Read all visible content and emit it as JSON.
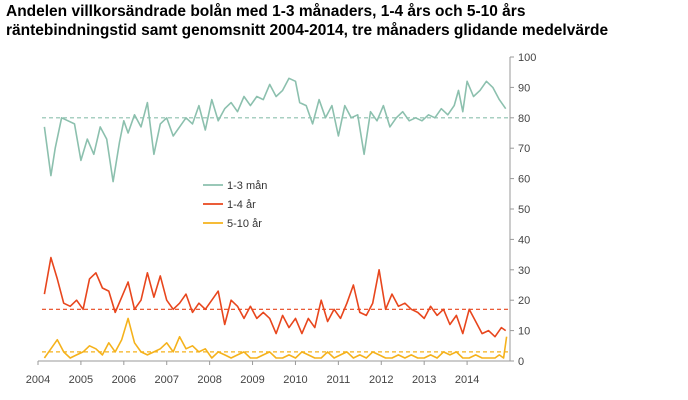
{
  "title": {
    "line1": "Andelen villkorsändrade bolån med 1-3 månaders, 1-4 års och 5-10 års",
    "line2": "räntebindningstid samt genomsnitt 2004-2014, tre månaders glidande medelvärde"
  },
  "colors": {
    "series_1_3_man": "#8cc0ae",
    "series_1_4_ar": "#e8461d",
    "series_5_10_ar": "#f5b21c",
    "axis": "#999999"
  },
  "chart_data": {
    "type": "line",
    "title": "Andelen villkorsändrade bolån med 1-3 månaders, 1-4 års och 5-10 års räntebindningstid samt genomsnitt 2004-2014, tre månaders glidande medelvärde",
    "xlabel": "",
    "ylabel": "",
    "xlim": [
      2004,
      2015
    ],
    "ylim": [
      0,
      100
    ],
    "x_ticks": [
      "2004",
      "2005",
      "2006",
      "2007",
      "2008",
      "2009",
      "2010",
      "2011",
      "2012",
      "2013",
      "2014"
    ],
    "y_ticks": [
      "0",
      "10",
      "20",
      "30",
      "40",
      "50",
      "60",
      "70",
      "80",
      "90",
      "100"
    ],
    "y_axis_side": "right",
    "grid": false,
    "legend_position": "center-left",
    "series": [
      {
        "name": "1-3 mån",
        "x": [
          2004.15,
          2004.3,
          2004.4,
          2004.55,
          2004.7,
          2004.85,
          2005.0,
          2005.15,
          2005.3,
          2005.45,
          2005.6,
          2005.75,
          2005.9,
          2006.0,
          2006.1,
          2006.25,
          2006.4,
          2006.55,
          2006.7,
          2006.85,
          2007.0,
          2007.15,
          2007.3,
          2007.45,
          2007.6,
          2007.75,
          2007.9,
          2008.05,
          2008.2,
          2008.35,
          2008.5,
          2008.65,
          2008.8,
          2008.95,
          2009.1,
          2009.25,
          2009.4,
          2009.55,
          2009.7,
          2009.85,
          2010.0,
          2010.1,
          2010.25,
          2010.4,
          2010.55,
          2010.7,
          2010.85,
          2011.0,
          2011.15,
          2011.3,
          2011.45,
          2011.6,
          2011.75,
          2011.9,
          2012.05,
          2012.2,
          2012.35,
          2012.5,
          2012.65,
          2012.8,
          2012.95,
          2013.1,
          2013.25,
          2013.4,
          2013.55,
          2013.7,
          2013.8,
          2013.9,
          2014.0,
          2014.15,
          2014.3,
          2014.45,
          2014.6,
          2014.75,
          2014.9
        ],
        "values": [
          77,
          61,
          70,
          80,
          79,
          78,
          66,
          73,
          68,
          77,
          73,
          59,
          72,
          79,
          75,
          81,
          77,
          85,
          68,
          78,
          80,
          74,
          77,
          80,
          78,
          84,
          76,
          86,
          79,
          83,
          85,
          82,
          87,
          84,
          87,
          86,
          91,
          87,
          89,
          93,
          92,
          85,
          84,
          78,
          86,
          80,
          84,
          74,
          84,
          80,
          81,
          68,
          82,
          79,
          84,
          77,
          80,
          82,
          79,
          80,
          79,
          81,
          80,
          83,
          81,
          84,
          89,
          82,
          92,
          87,
          89,
          92,
          90,
          86,
          83
        ]
      },
      {
        "name": "1-4 år",
        "x": [
          2004.15,
          2004.3,
          2004.45,
          2004.6,
          2004.75,
          2004.9,
          2005.05,
          2005.2,
          2005.35,
          2005.5,
          2005.65,
          2005.8,
          2005.95,
          2006.1,
          2006.25,
          2006.4,
          2006.55,
          2006.7,
          2006.85,
          2007.0,
          2007.15,
          2007.3,
          2007.45,
          2007.6,
          2007.75,
          2007.9,
          2008.05,
          2008.2,
          2008.35,
          2008.5,
          2008.65,
          2008.8,
          2008.95,
          2009.1,
          2009.25,
          2009.4,
          2009.55,
          2009.7,
          2009.85,
          2010.0,
          2010.15,
          2010.3,
          2010.45,
          2010.6,
          2010.75,
          2010.9,
          2011.05,
          2011.2,
          2011.35,
          2011.5,
          2011.65,
          2011.8,
          2011.95,
          2012.1,
          2012.25,
          2012.4,
          2012.55,
          2012.7,
          2012.85,
          2013.0,
          2013.15,
          2013.3,
          2013.45,
          2013.6,
          2013.75,
          2013.9,
          2014.05,
          2014.2,
          2014.35,
          2014.5,
          2014.65,
          2014.8,
          2014.9
        ],
        "values": [
          22,
          34,
          27,
          19,
          18,
          20,
          17,
          27,
          29,
          24,
          23,
          16,
          21,
          26,
          17,
          20,
          29,
          21,
          28,
          20,
          17,
          19,
          22,
          16,
          19,
          17,
          20,
          23,
          12,
          20,
          18,
          14,
          18,
          14,
          16,
          14,
          9,
          15,
          11,
          14,
          9,
          14,
          11,
          20,
          13,
          17,
          14,
          19,
          25,
          16,
          15,
          19,
          30,
          17,
          22,
          18,
          19,
          17,
          16,
          14,
          18,
          15,
          17,
          12,
          15,
          9,
          17,
          13,
          9,
          10,
          8,
          11,
          10
        ]
      },
      {
        "name": "5-10 år",
        "x": [
          2004.15,
          2004.3,
          2004.45,
          2004.6,
          2004.75,
          2004.9,
          2005.05,
          2005.2,
          2005.35,
          2005.5,
          2005.65,
          2005.8,
          2005.95,
          2006.1,
          2006.25,
          2006.4,
          2006.55,
          2006.7,
          2006.85,
          2007.0,
          2007.15,
          2007.3,
          2007.45,
          2007.6,
          2007.75,
          2007.9,
          2008.05,
          2008.2,
          2008.35,
          2008.5,
          2008.65,
          2008.8,
          2008.95,
          2009.1,
          2009.25,
          2009.4,
          2009.55,
          2009.7,
          2009.85,
          2010.0,
          2010.15,
          2010.3,
          2010.45,
          2010.6,
          2010.75,
          2010.9,
          2011.05,
          2011.2,
          2011.35,
          2011.5,
          2011.65,
          2011.8,
          2011.95,
          2012.1,
          2012.25,
          2012.4,
          2012.55,
          2012.7,
          2012.85,
          2013.0,
          2013.15,
          2013.3,
          2013.45,
          2013.6,
          2013.75,
          2013.9,
          2014.05,
          2014.2,
          2014.35,
          2014.5,
          2014.65,
          2014.75,
          2014.85,
          2014.92
        ],
        "values": [
          1,
          4,
          7,
          3,
          1,
          2,
          3,
          5,
          4,
          2,
          6,
          3,
          7,
          14,
          6,
          3,
          2,
          3,
          4,
          6,
          3,
          8,
          4,
          5,
          3,
          4,
          1,
          3,
          2,
          1,
          2,
          3,
          1,
          1,
          2,
          3,
          1,
          1,
          2,
          1,
          3,
          2,
          1,
          1,
          3,
          1,
          2,
          3,
          1,
          2,
          1,
          3,
          2,
          1,
          1,
          2,
          1,
          2,
          1,
          1,
          2,
          1,
          3,
          2,
          3,
          1,
          1,
          2,
          1,
          1,
          1,
          2,
          1,
          8
        ]
      }
    ],
    "averages": [
      {
        "series": "1-3 mån",
        "value": 80
      },
      {
        "series": "1-4 år",
        "value": 17
      },
      {
        "series": "5-10 år",
        "value": 3
      }
    ]
  }
}
